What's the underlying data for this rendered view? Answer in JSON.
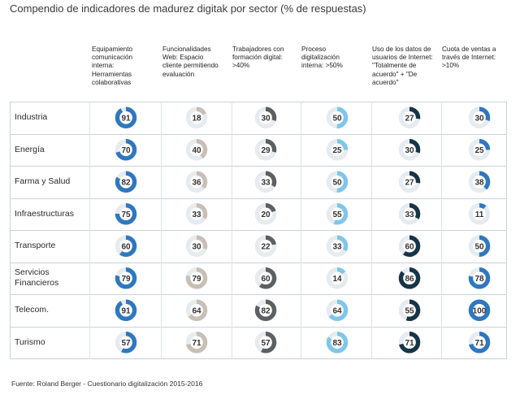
{
  "chart_data": {
    "type": "table",
    "title": "Compendio de indicadores de madurez digitak por sector (% de respuestas)",
    "source": "Fuente: Roland Berger - Cuestionario digitalización 2015-2016",
    "columns": [
      {
        "label": "Equipamiento\ncomunicación\ninterna:\nHerramientas\ncolaborativas",
        "color": "#2f78c0"
      },
      {
        "label": "Funcionalidades\nWeb: Espacio\ncliente permitiendo\nevaluación",
        "color": "#c8bfb5"
      },
      {
        "label": "Trabajadores con\nformación digital:\n>40%",
        "color": "#5b6065"
      },
      {
        "label": "Proceso\ndigitalización\ninterna: >50%",
        "color": "#7fc6ea"
      },
      {
        "label": "Uso de los datos de\nusuarios de Internet:\n\"Totalmente de\nacuerdo\" + \"De\nacuerdo\"",
        "color": "#163548"
      },
      {
        "label": "Cuota de ventas a\ntravés de Internet:\n>10%",
        "color": "#2f78c0"
      }
    ],
    "rows": [
      {
        "label": "Industria",
        "values": [
          91,
          18,
          30,
          50,
          27,
          30
        ]
      },
      {
        "label": "Energía",
        "values": [
          70,
          40,
          29,
          25,
          30,
          25
        ]
      },
      {
        "label": "Farma y Salud",
        "values": [
          82,
          36,
          33,
          50,
          27,
          38
        ]
      },
      {
        "label": "Infraestructuras",
        "values": [
          75,
          33,
          20,
          55,
          33,
          11
        ]
      },
      {
        "label": "Transporte",
        "values": [
          60,
          30,
          22,
          33,
          60,
          50
        ]
      },
      {
        "label": "Servicios\nFinancieros",
        "values": [
          79,
          79,
          60,
          14,
          86,
          78
        ]
      },
      {
        "label": "Telecom.",
        "values": [
          91,
          64,
          82,
          64,
          55,
          100
        ]
      },
      {
        "label": "Turismo",
        "values": [
          57,
          71,
          57,
          83,
          71,
          71
        ]
      }
    ]
  }
}
